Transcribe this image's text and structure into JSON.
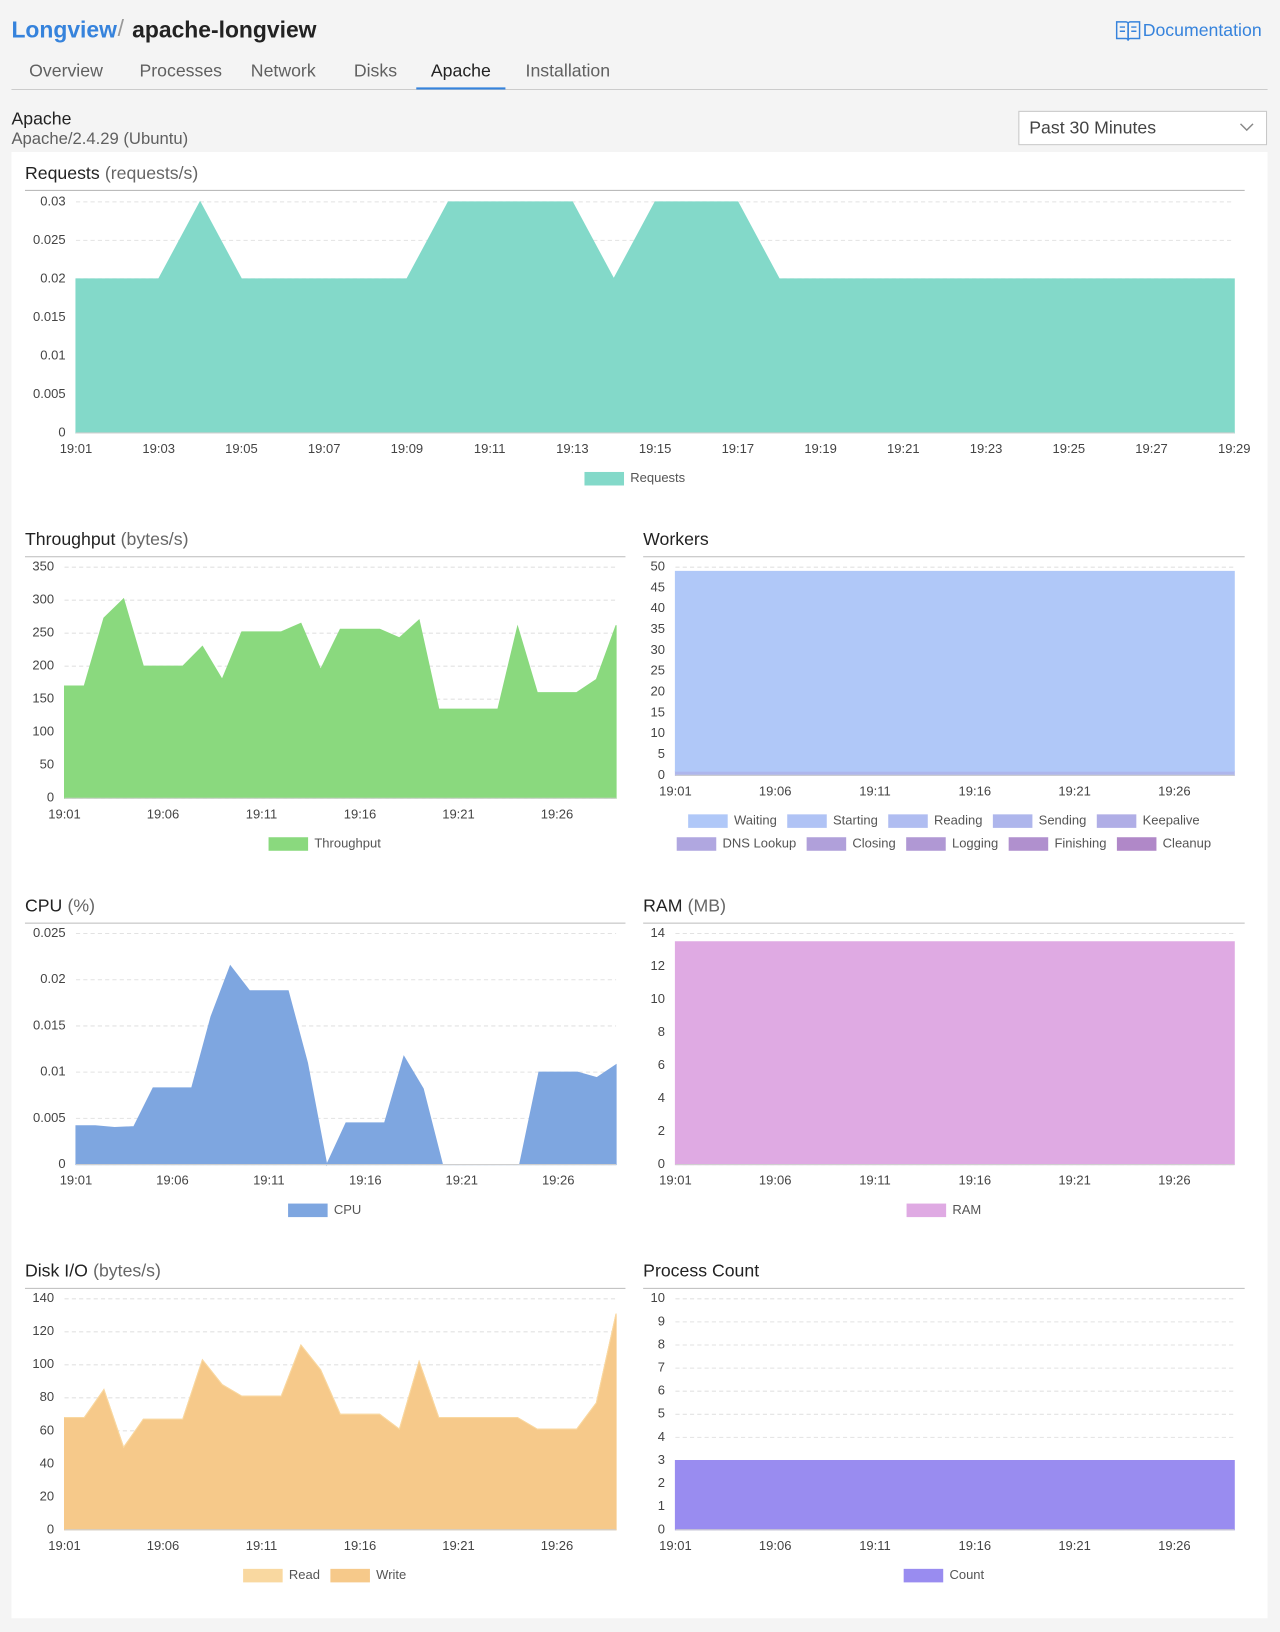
{
  "header": {
    "breadcrumb_root": "Longview",
    "breadcrumb_current": "apache-longview",
    "docs_link": "Documentation"
  },
  "tabs": [
    "Overview",
    "Processes",
    "Network",
    "Disks",
    "Apache",
    "Installation"
  ],
  "active_tab": 4,
  "app": {
    "name": "Apache",
    "version": "Apache/2.4.29 (Ubuntu)"
  },
  "time_range": "Past 30 Minutes",
  "chart_data": [
    {
      "type": "area",
      "title": "Requests",
      "unit": "(requests/s)",
      "categories": [
        "19:01",
        null,
        "19:03",
        null,
        "19:05",
        null,
        "19:07",
        null,
        "19:09",
        null,
        "19:11",
        null,
        "19:13",
        null,
        "19:15",
        null,
        "19:17",
        null,
        "19:19",
        null,
        "19:21",
        null,
        "19:23",
        null,
        "19:25",
        null,
        "19:27",
        null,
        "19:29"
      ],
      "series": [
        {
          "name": "Requests",
          "color": "#83d9c9",
          "values": [
            0.02,
            0.02,
            0.02,
            0.03,
            0.02,
            0.02,
            0.02,
            0.02,
            0.02,
            0.03,
            0.03,
            0.03,
            0.03,
            0.02,
            0.03,
            0.03,
            0.03,
            0.02,
            0.02,
            0.02,
            0.02,
            0.02,
            0.02,
            0.02,
            0.02,
            0.02,
            0.02,
            0.02,
            0.02
          ]
        }
      ],
      "ylim": [
        0,
        0.03
      ],
      "yticks": [
        0,
        0.005,
        0.01,
        0.015,
        0.02,
        0.025,
        0.03
      ],
      "grid": true
    },
    {
      "type": "area",
      "title": "Throughput",
      "unit": "(bytes/s)",
      "categories": [
        "19:01",
        null,
        null,
        null,
        null,
        "19:06",
        null,
        null,
        null,
        null,
        "19:11",
        null,
        null,
        null,
        null,
        "19:16",
        null,
        null,
        null,
        null,
        "19:21",
        null,
        null,
        null,
        null,
        "19:26",
        null,
        null,
        null
      ],
      "series": [
        {
          "name": "Throughput",
          "color": "#8ad97e",
          "values": [
            170,
            170,
            273,
            302,
            200,
            200,
            200,
            230,
            180,
            252,
            252,
            252,
            265,
            195,
            256,
            256,
            256,
            243,
            270,
            135,
            135,
            135,
            135,
            260,
            160,
            160,
            160,
            180,
            262
          ]
        }
      ],
      "ylim": [
        0,
        350
      ],
      "yticks": [
        0,
        50,
        100,
        150,
        200,
        250,
        300,
        350
      ],
      "grid": true
    },
    {
      "type": "area",
      "title": "Workers",
      "stacked": true,
      "categories": [
        "19:01",
        null,
        null,
        null,
        null,
        "19:06",
        null,
        null,
        null,
        null,
        "19:11",
        null,
        null,
        null,
        null,
        "19:16",
        null,
        null,
        null,
        null,
        "19:21",
        null,
        null,
        null,
        null,
        "19:26",
        null,
        null,
        null
      ],
      "series": [
        {
          "name": "Waiting",
          "color": "#b0c8f8",
          "values": [
            48,
            48,
            48,
            48,
            48,
            48,
            48,
            48,
            48,
            48,
            48,
            48,
            48,
            48,
            48,
            48,
            48,
            48,
            48,
            48,
            48,
            48,
            48,
            48,
            48,
            48,
            48,
            48,
            48
          ]
        },
        {
          "name": "Starting",
          "color": "#b0c3f5",
          "values": [
            0,
            0,
            0,
            0,
            0,
            0,
            0,
            0,
            0,
            0,
            0,
            0,
            0,
            0,
            0,
            0,
            0,
            0,
            0,
            0,
            0,
            0,
            0,
            0,
            0,
            0,
            0,
            0,
            0
          ]
        },
        {
          "name": "Reading",
          "color": "#b0bdf1",
          "values": [
            0,
            0,
            0,
            0,
            0,
            0,
            0,
            0,
            0,
            0,
            0,
            0,
            0,
            0,
            0,
            0,
            0,
            0,
            0,
            0,
            0,
            0,
            0,
            0,
            0,
            0,
            0,
            0,
            0
          ]
        },
        {
          "name": "Sending",
          "color": "#aeb6ec",
          "values": [
            1,
            1,
            1,
            1,
            1,
            1,
            1,
            1,
            1,
            1,
            1,
            1,
            1,
            1,
            1,
            1,
            1,
            1,
            1,
            1,
            1,
            1,
            1,
            1,
            1,
            1,
            1,
            1,
            1
          ]
        },
        {
          "name": "Keepalive",
          "color": "#b0aee6",
          "values": [
            0,
            0,
            0,
            0,
            0,
            0,
            0,
            0,
            0,
            0,
            0,
            0,
            0,
            0,
            0,
            0,
            0,
            0,
            0,
            0,
            0,
            0,
            0,
            0,
            0,
            0,
            0,
            0,
            0
          ]
        },
        {
          "name": "DNS Lookup",
          "color": "#b0a7e0",
          "values": [
            0,
            0,
            0,
            0,
            0,
            0,
            0,
            0,
            0,
            0,
            0,
            0,
            0,
            0,
            0,
            0,
            0,
            0,
            0,
            0,
            0,
            0,
            0,
            0,
            0,
            0,
            0,
            0,
            0
          ]
        },
        {
          "name": "Closing",
          "color": "#b0a0da",
          "values": [
            0,
            0,
            0,
            0,
            0,
            0,
            0,
            0,
            0,
            0,
            0,
            0,
            0,
            0,
            0,
            0,
            0,
            0,
            0,
            0,
            0,
            0,
            0,
            0,
            0,
            0,
            0,
            0,
            0
          ]
        },
        {
          "name": "Logging",
          "color": "#b098d4",
          "values": [
            0,
            0,
            0,
            0,
            0,
            0,
            0,
            0,
            0,
            0,
            0,
            0,
            0,
            0,
            0,
            0,
            0,
            0,
            0,
            0,
            0,
            0,
            0,
            0,
            0,
            0,
            0,
            0,
            0
          ]
        },
        {
          "name": "Finishing",
          "color": "#b090ce",
          "values": [
            0,
            0,
            0,
            0,
            0,
            0,
            0,
            0,
            0,
            0,
            0,
            0,
            0,
            0,
            0,
            0,
            0,
            0,
            0,
            0,
            0,
            0,
            0,
            0,
            0,
            0,
            0,
            0,
            0
          ]
        },
        {
          "name": "Cleanup",
          "color": "#b088c8",
          "values": [
            0,
            0,
            0,
            0,
            0,
            0,
            0,
            0,
            0,
            0,
            0,
            0,
            0,
            0,
            0,
            0,
            0,
            0,
            0,
            0,
            0,
            0,
            0,
            0,
            0,
            0,
            0,
            0,
            0
          ]
        }
      ],
      "ylim": [
        0,
        50
      ],
      "yticks": [
        0,
        5,
        10,
        15,
        20,
        25,
        30,
        35,
        40,
        45,
        50
      ],
      "grid": true
    },
    {
      "type": "area",
      "title": "CPU",
      "unit": "(%)",
      "categories": [
        "19:01",
        null,
        null,
        null,
        null,
        "19:06",
        null,
        null,
        null,
        null,
        "19:11",
        null,
        null,
        null,
        null,
        "19:16",
        null,
        null,
        null,
        null,
        "19:21",
        null,
        null,
        null,
        null,
        "19:26",
        null,
        null,
        null
      ],
      "series": [
        {
          "name": "CPU",
          "color": "#7ea6e0",
          "values": [
            0.0042,
            0.0042,
            0.004,
            0.0041,
            0.0083,
            0.0083,
            0.0083,
            0.016,
            0.0215,
            0.0188,
            0.0188,
            0.0188,
            0.011,
            0,
            0.0045,
            0.0045,
            0.0045,
            0.0117,
            0.0082,
            0,
            0,
            0,
            0,
            0,
            0.01,
            0.01,
            0.01,
            0.0094,
            0.0108
          ]
        }
      ],
      "ylim": [
        0,
        0.025
      ],
      "yticks": [
        0,
        0.005,
        0.01,
        0.015,
        0.02,
        0.025
      ],
      "grid": true
    },
    {
      "type": "area",
      "title": "RAM",
      "unit": "(MB)",
      "categories": [
        "19:01",
        null,
        null,
        null,
        null,
        "19:06",
        null,
        null,
        null,
        null,
        "19:11",
        null,
        null,
        null,
        null,
        "19:16",
        null,
        null,
        null,
        null,
        "19:21",
        null,
        null,
        null,
        null,
        "19:26",
        null,
        null,
        null
      ],
      "series": [
        {
          "name": "RAM",
          "color": "#dfaae3",
          "values": [
            13.5,
            13.5,
            13.5,
            13.5,
            13.5,
            13.5,
            13.5,
            13.5,
            13.5,
            13.5,
            13.5,
            13.5,
            13.5,
            13.5,
            13.5,
            13.5,
            13.5,
            13.5,
            13.5,
            13.5,
            13.5,
            13.5,
            13.5,
            13.5,
            13.5,
            13.5,
            13.5,
            13.5,
            13.5
          ]
        }
      ],
      "ylim": [
        0,
        14
      ],
      "yticks": [
        0,
        2,
        4,
        6,
        8,
        10,
        12,
        14
      ],
      "grid": true
    },
    {
      "type": "area",
      "title": "Disk I/O",
      "unit": "(bytes/s)",
      "stacked": true,
      "categories": [
        "19:01",
        null,
        null,
        null,
        null,
        "19:06",
        null,
        null,
        null,
        null,
        "19:11",
        null,
        null,
        null,
        null,
        "19:16",
        null,
        null,
        null,
        null,
        "19:21",
        null,
        null,
        null,
        null,
        "19:26",
        null,
        null,
        null
      ],
      "series": [
        {
          "name": "Read",
          "color": "#f9d8a0",
          "values": [
            0,
            0,
            0,
            0,
            0,
            0,
            0,
            0,
            0,
            0,
            0,
            0,
            0,
            0,
            0,
            0,
            0,
            0,
            0,
            0,
            0,
            0,
            0,
            0,
            0,
            0,
            0,
            0,
            0
          ]
        },
        {
          "name": "Write",
          "color": "#f6c98a",
          "values": [
            68,
            68,
            85,
            50,
            67,
            67,
            67,
            103,
            88,
            81,
            81,
            81,
            112,
            97,
            70,
            70,
            70,
            61,
            102,
            68,
            68,
            68,
            68,
            68,
            61,
            61,
            61,
            77,
            131
          ]
        }
      ],
      "ylim": [
        0,
        140
      ],
      "yticks": [
        0,
        20,
        40,
        60,
        80,
        100,
        120,
        140
      ],
      "grid": true
    },
    {
      "type": "area",
      "title": "Process Count",
      "categories": [
        "19:01",
        null,
        null,
        null,
        null,
        "19:06",
        null,
        null,
        null,
        null,
        "19:11",
        null,
        null,
        null,
        null,
        "19:16",
        null,
        null,
        null,
        null,
        "19:21",
        null,
        null,
        null,
        null,
        "19:26",
        null,
        null,
        null
      ],
      "series": [
        {
          "name": "Count",
          "color": "#998cf0",
          "values": [
            3,
            3,
            3,
            3,
            3,
            3,
            3,
            3,
            3,
            3,
            3,
            3,
            3,
            3,
            3,
            3,
            3,
            3,
            3,
            3,
            3,
            3,
            3,
            3,
            3,
            3,
            3,
            3,
            3
          ]
        }
      ],
      "ylim": [
        0,
        10
      ],
      "yticks": [
        0,
        1,
        2,
        3,
        4,
        5,
        6,
        7,
        8,
        9,
        10
      ],
      "grid": true
    }
  ]
}
